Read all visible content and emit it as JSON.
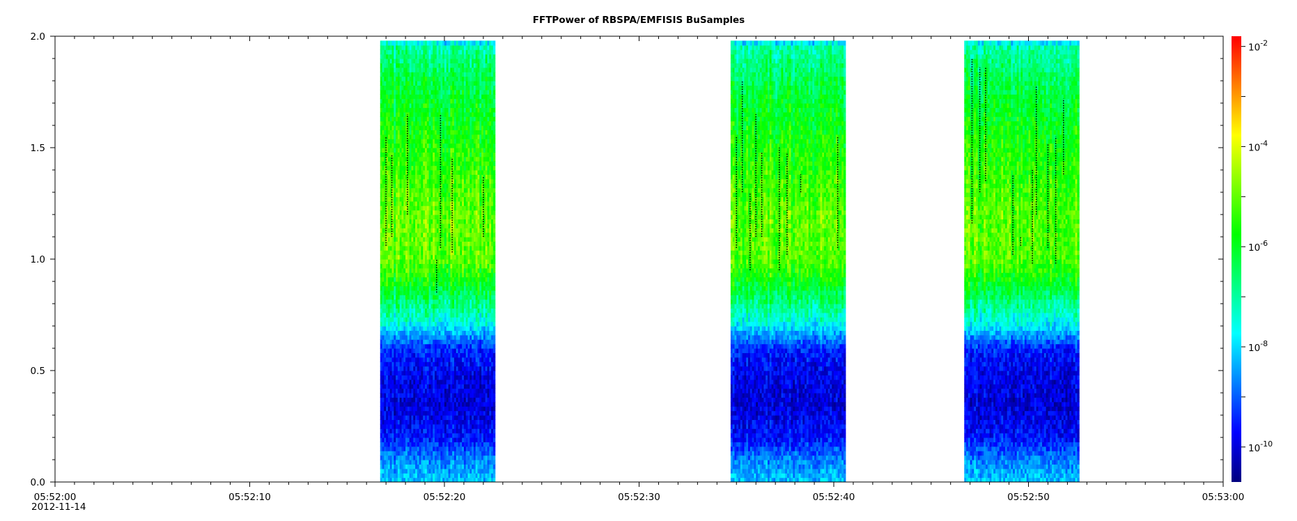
{
  "chart_data": {
    "type": "heatmap",
    "title": "FFTPower of RBSPA/EMFISIS  BuSamples",
    "xlabel": "",
    "ylabel": "",
    "x_range": [
      "05:52:00",
      "05:53:00"
    ],
    "x_tick_labels": [
      "05:52:00",
      "05:52:10",
      "05:52:20",
      "05:52:30",
      "05:52:40",
      "05:52:50",
      "05:53:00"
    ],
    "x_date_label": "2012-11-14",
    "ylim": [
      0.0,
      2.0
    ],
    "y_tick_labels": [
      "0.0",
      "0.5",
      "1.0",
      "1.5",
      "2.0"
    ],
    "grid": false,
    "colorbar": {
      "scale": "log",
      "range": [
        2e-11,
        0.016
      ],
      "tick_exponents": [
        "-10",
        "-8",
        "-6",
        "-4",
        "-2"
      ],
      "colormap": [
        "#00007f",
        "#0000ff",
        "#0080ff",
        "#00ffff",
        "#00ff80",
        "#00ff00",
        "#80ff00",
        "#ffff00",
        "#ff8000",
        "#ff0000"
      ]
    },
    "data_intervals_seconds": [
      {
        "start": 16.7,
        "end": 22.6
      },
      {
        "start": 34.7,
        "end": 40.6
      },
      {
        "start": 46.7,
        "end": 52.6
      }
    ],
    "spectral_profile": [
      {
        "y": 0.02,
        "log_power": -8.2
      },
      {
        "y": 0.1,
        "log_power": -8.7
      },
      {
        "y": 0.2,
        "log_power": -9.6
      },
      {
        "y": 0.35,
        "log_power": -10.0
      },
      {
        "y": 0.5,
        "log_power": -9.8
      },
      {
        "y": 0.6,
        "log_power": -9.4
      },
      {
        "y": 0.66,
        "log_power": -8.5
      },
      {
        "y": 0.72,
        "log_power": -7.5
      },
      {
        "y": 0.8,
        "log_power": -6.8
      },
      {
        "y": 0.9,
        "log_power": -5.8
      },
      {
        "y": 1.0,
        "log_power": -5.1
      },
      {
        "y": 1.2,
        "log_power": -5.0
      },
      {
        "y": 1.4,
        "log_power": -5.4
      },
      {
        "y": 1.6,
        "log_power": -5.8
      },
      {
        "y": 1.8,
        "log_power": -6.3
      },
      {
        "y": 1.95,
        "log_power": -7.0
      },
      {
        "y": 2.0,
        "log_power": -8.8
      }
    ],
    "peak_tracks": [
      {
        "t": 17.0,
        "y1": 1.06,
        "y2": 1.55
      },
      {
        "t": 17.3,
        "y1": 1.1,
        "y2": 1.47
      },
      {
        "t": 18.1,
        "y1": 1.2,
        "y2": 1.65
      },
      {
        "t": 19.6,
        "y1": 0.85,
        "y2": 1.0
      },
      {
        "t": 19.8,
        "y1": 1.05,
        "y2": 1.65
      },
      {
        "t": 20.4,
        "y1": 1.03,
        "y2": 1.45
      },
      {
        "t": 22.0,
        "y1": 1.1,
        "y2": 1.37
      },
      {
        "t": 35.0,
        "y1": 1.05,
        "y2": 1.55
      },
      {
        "t": 35.3,
        "y1": 1.3,
        "y2": 1.8
      },
      {
        "t": 35.7,
        "y1": 0.95,
        "y2": 1.3
      },
      {
        "t": 36.0,
        "y1": 1.1,
        "y2": 1.65
      },
      {
        "t": 36.3,
        "y1": 1.1,
        "y2": 1.48
      },
      {
        "t": 37.2,
        "y1": 0.95,
        "y2": 1.5
      },
      {
        "t": 37.6,
        "y1": 1.02,
        "y2": 1.48
      },
      {
        "t": 38.3,
        "y1": 1.3,
        "y2": 1.38
      },
      {
        "t": 40.2,
        "y1": 1.05,
        "y2": 1.55
      },
      {
        "t": 47.1,
        "y1": 1.16,
        "y2": 1.9
      },
      {
        "t": 47.5,
        "y1": 1.3,
        "y2": 1.86
      },
      {
        "t": 47.8,
        "y1": 1.35,
        "y2": 1.86
      },
      {
        "t": 49.2,
        "y1": 1.02,
        "y2": 1.38
      },
      {
        "t": 49.6,
        "y1": 1.06,
        "y2": 1.1
      },
      {
        "t": 50.2,
        "y1": 0.98,
        "y2": 1.4
      },
      {
        "t": 50.4,
        "y1": 1.2,
        "y2": 1.78
      },
      {
        "t": 51.0,
        "y1": 1.05,
        "y2": 1.52
      },
      {
        "t": 51.4,
        "y1": 0.98,
        "y2": 1.55
      },
      {
        "t": 51.8,
        "y1": 1.38,
        "y2": 1.72
      }
    ]
  }
}
